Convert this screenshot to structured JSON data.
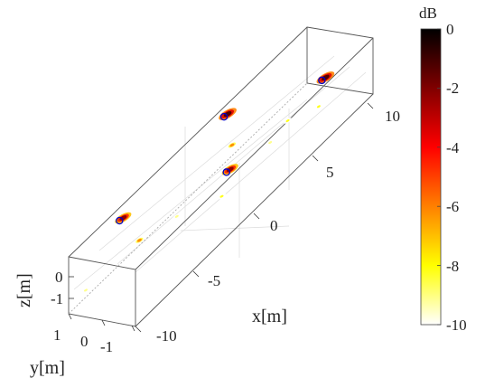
{
  "chart_data": {
    "type": "scatter",
    "subtype": "3d-acoustic-source-map",
    "title": "",
    "xlabel": "x[m]",
    "ylabel": "y[m]",
    "zlabel": "z[m]",
    "x_ticks": [
      "-10",
      "-5",
      "0",
      "5",
      "10"
    ],
    "y_ticks": [
      "1",
      "0",
      "-1"
    ],
    "z_ticks": [
      "0",
      "-1"
    ],
    "colorbar": {
      "label": "dB",
      "min": -10,
      "max": 0,
      "ticks": [
        "0",
        "-2",
        "-4",
        "-6",
        "-8",
        "-10"
      ],
      "colormap": "hot",
      "colors": [
        "#000000",
        "#800000",
        "#ff0000",
        "#ff8000",
        "#ffff00",
        "#ffffff"
      ]
    },
    "markers": [
      {
        "x": -10,
        "y": 0.8,
        "z": 0
      },
      {
        "x": -2.5,
        "y": -0.9,
        "z": 0
      },
      {
        "x": 3.5,
        "y": 0.9,
        "z": 0
      },
      {
        "x": 9.5,
        "y": -0.9,
        "z": 0
      }
    ],
    "marker_color": "#0000cc",
    "sources": [
      {
        "x": -10,
        "y": 0.8,
        "z": 0,
        "level_db": -2
      },
      {
        "x": -2.5,
        "y": -0.9,
        "z": 0,
        "level_db": -2
      },
      {
        "x": 3.5,
        "y": 0.9,
        "z": 0,
        "level_db": -1
      },
      {
        "x": 9.5,
        "y": -0.9,
        "z": 0,
        "level_db": -1
      },
      {
        "x": -9,
        "y": 0.5,
        "z": -1,
        "level_db": -6
      },
      {
        "x": 3,
        "y": 0.6,
        "z": -0.9,
        "level_db": -6
      },
      {
        "x": 6.5,
        "y": -0.4,
        "z": -0.8,
        "level_db": -8
      },
      {
        "x": -2.5,
        "y": -0.6,
        "z": -1,
        "level_db": -8
      },
      {
        "x": 9,
        "y": -0.8,
        "z": -0.9,
        "level_db": -8
      },
      {
        "x": -14,
        "y": 1,
        "z": -1.5,
        "level_db": -9
      },
      {
        "x": -5,
        "y": 0.3,
        "z": -1.2,
        "level_db": -9
      },
      {
        "x": 5,
        "y": -0.2,
        "z": -1.2,
        "level_db": -9
      }
    ],
    "grid": true
  }
}
